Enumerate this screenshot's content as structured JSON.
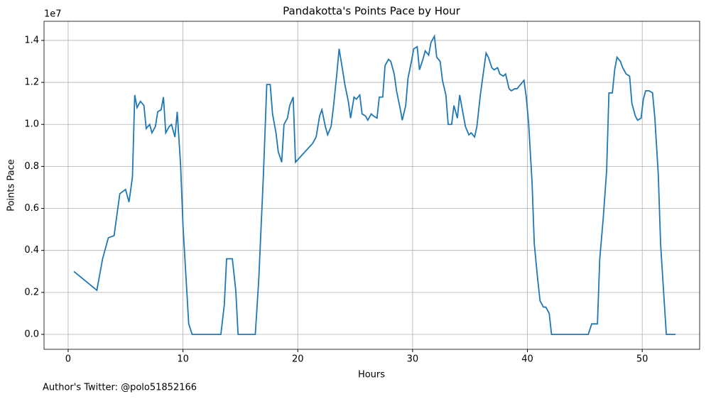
{
  "chart_data": {
    "type": "line",
    "title": "Pandakotta's Points Pace by Hour",
    "xlabel": "Hours",
    "ylabel": "Points Pace",
    "y_offset_label": "1e7",
    "footer": "Author's Twitter: @polo51852166",
    "x": [
      0.5,
      2.5,
      3.0,
      3.5,
      4.0,
      4.5,
      5.0,
      5.3,
      5.6,
      5.8,
      6.0,
      6.3,
      6.6,
      6.8,
      7.1,
      7.3,
      7.6,
      7.8,
      8.1,
      8.3,
      8.5,
      8.8,
      9.0,
      9.3,
      9.5,
      9.8,
      10.0,
      10.5,
      10.8,
      13.3,
      13.6,
      13.8,
      14.3,
      14.6,
      14.8,
      16.3,
      16.6,
      17.0,
      17.3,
      17.6,
      17.8,
      18.1,
      18.3,
      18.6,
      18.8,
      19.1,
      19.3,
      19.6,
      19.8,
      21.3,
      21.6,
      21.9,
      22.1,
      22.4,
      22.6,
      22.9,
      23.1,
      23.4,
      23.6,
      23.9,
      24.1,
      24.4,
      24.6,
      24.9,
      25.1,
      25.4,
      25.6,
      25.9,
      26.1,
      26.4,
      26.6,
      26.9,
      27.1,
      27.4,
      27.6,
      27.9,
      28.1,
      28.4,
      28.6,
      28.9,
      29.1,
      29.4,
      29.6,
      29.9,
      30.1,
      30.4,
      30.6,
      30.9,
      31.1,
      31.4,
      31.6,
      31.9,
      32.1,
      32.4,
      32.6,
      32.9,
      33.1,
      33.4,
      33.6,
      33.9,
      34.1,
      34.4,
      34.6,
      34.9,
      35.1,
      35.4,
      35.6,
      35.9,
      36.1,
      36.4,
      36.6,
      36.9,
      37.1,
      37.4,
      37.6,
      37.9,
      38.1,
      38.4,
      38.6,
      38.9,
      39.1,
      39.4,
      39.7,
      39.9,
      40.1,
      40.4,
      40.6,
      40.9,
      41.1,
      41.4,
      41.6,
      41.9,
      42.1,
      45.3,
      45.6,
      46.1,
      46.3,
      46.6,
      46.9,
      47.1,
      47.4,
      47.6,
      47.8,
      48.1,
      48.3,
      48.6,
      48.9,
      49.1,
      49.4,
      49.6,
      49.9,
      50.1,
      50.3,
      50.6,
      50.9,
      51.1,
      51.4,
      51.6,
      51.9,
      52.1,
      52.9
    ],
    "series": [
      {
        "name": "Points Pace",
        "color": "#1f77b4",
        "values": [
          0.3,
          0.21,
          0.36,
          0.46,
          0.47,
          0.67,
          0.69,
          0.63,
          0.75,
          1.14,
          1.08,
          1.11,
          1.09,
          0.98,
          1.0,
          0.96,
          0.99,
          1.06,
          1.07,
          1.13,
          0.96,
          0.99,
          1.0,
          0.94,
          1.06,
          0.8,
          0.52,
          0.05,
          0,
          0,
          0.14,
          0.36,
          0.36,
          0.21,
          0,
          0,
          0.26,
          0.75,
          1.19,
          1.19,
          1.05,
          0.96,
          0.87,
          0.82,
          1.0,
          1.03,
          1.09,
          1.13,
          0.82,
          0.91,
          0.94,
          1.04,
          1.07,
          0.99,
          0.95,
          0.99,
          1.08,
          1.24,
          1.36,
          1.26,
          1.19,
          1.11,
          1.03,
          1.13,
          1.12,
          1.14,
          1.05,
          1.04,
          1.02,
          1.05,
          1.04,
          1.03,
          1.13,
          1.13,
          1.28,
          1.31,
          1.3,
          1.24,
          1.16,
          1.08,
          1.02,
          1.09,
          1.22,
          1.3,
          1.36,
          1.37,
          1.26,
          1.31,
          1.35,
          1.33,
          1.39,
          1.42,
          1.32,
          1.3,
          1.21,
          1.14,
          1.0,
          1.0,
          1.09,
          1.03,
          1.14,
          1.05,
          0.99,
          0.95,
          0.96,
          0.94,
          0.99,
          1.14,
          1.22,
          1.34,
          1.32,
          1.27,
          1.26,
          1.27,
          1.24,
          1.23,
          1.24,
          1.17,
          1.16,
          1.17,
          1.17,
          1.19,
          1.21,
          1.13,
          1.01,
          0.73,
          0.43,
          0.26,
          0.16,
          0.13,
          0.13,
          0.1,
          0,
          0,
          0.05,
          0.05,
          0.36,
          0.55,
          0.78,
          1.15,
          1.15,
          1.26,
          1.32,
          1.3,
          1.27,
          1.24,
          1.23,
          1.1,
          1.04,
          1.02,
          1.03,
          1.12,
          1.16,
          1.16,
          1.15,
          1.03,
          0.76,
          0.43,
          0.17,
          0,
          0
        ]
      }
    ],
    "xlim": [
      -2.1,
      55.0
    ],
    "xticks": [
      0,
      10,
      20,
      30,
      40,
      50
    ],
    "ylim": [
      -0.071,
      1.491
    ],
    "yticks": [
      {
        "value": 0,
        "label": "0.0"
      },
      0.2,
      0.4,
      0.6,
      0.8,
      {
        "value": 1,
        "label": "1.0"
      },
      1.2,
      1.4
    ],
    "grid": true
  }
}
